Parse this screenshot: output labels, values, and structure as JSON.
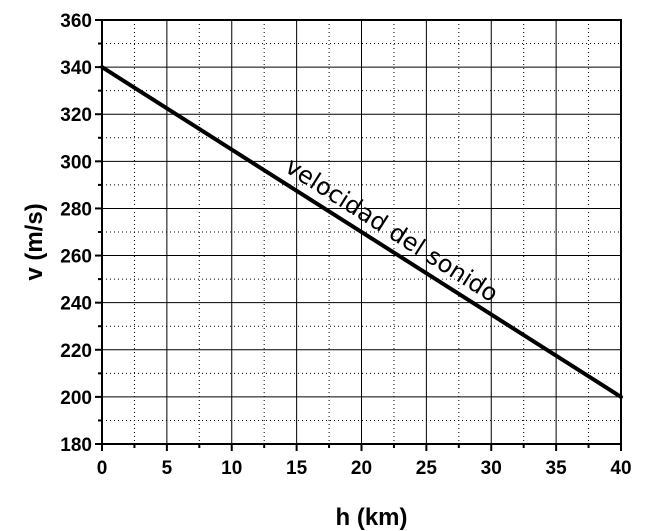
{
  "chart_data": {
    "type": "line",
    "xlabel": "h (km)",
    "ylabel": "v (m/s)",
    "xlim": [
      0,
      40
    ],
    "ylim": [
      180,
      360
    ],
    "x_ticks": [
      0,
      5,
      10,
      15,
      20,
      25,
      30,
      35,
      40
    ],
    "y_ticks": [
      180,
      200,
      220,
      240,
      260,
      280,
      300,
      320,
      340,
      360
    ],
    "grid": true,
    "series": [
      {
        "name": "velocidad del sonido",
        "x": [
          0,
          40
        ],
        "y": [
          340,
          200
        ]
      }
    ],
    "annotations": [
      {
        "text": "velocidad del sonido",
        "x": 22,
        "y": 268
      }
    ]
  }
}
